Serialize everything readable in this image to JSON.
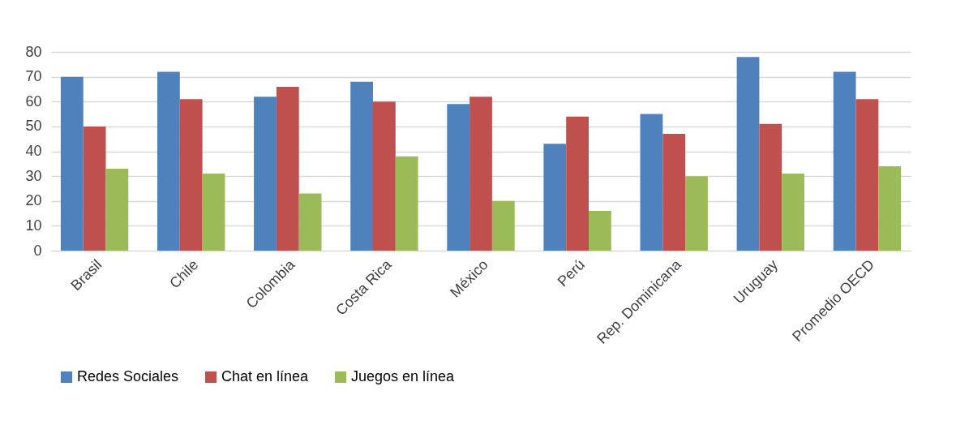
{
  "chart_data": {
    "type": "bar",
    "categories": [
      "Brasil",
      "Chile",
      "Colombia",
      "Costa Rica",
      "México",
      "Perú",
      "Rep. Dominicana",
      "Uruguay",
      "Promedio OECD"
    ],
    "series": [
      {
        "name": "Redes Sociales",
        "color": "#4f81bd",
        "values": [
          70,
          72,
          62,
          68,
          59,
          43,
          55,
          78,
          72
        ]
      },
      {
        "name": "Chat en línea",
        "color": "#c0504d",
        "values": [
          50,
          61,
          66,
          60,
          62,
          54,
          47,
          51,
          61
        ]
      },
      {
        "name": "Juegos en línea",
        "color": "#9bbb59",
        "values": [
          33,
          31,
          23,
          38,
          20,
          16,
          30,
          31,
          34
        ]
      }
    ],
    "ylim": [
      0,
      80
    ],
    "yticks": [
      0,
      10,
      20,
      30,
      40,
      50,
      60,
      70,
      80
    ],
    "grid": "y",
    "legend": "bottom"
  }
}
